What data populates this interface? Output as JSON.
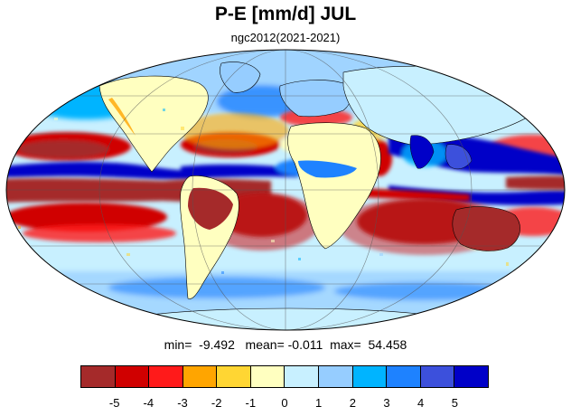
{
  "title": "P-E [mm/d] JUL",
  "subtitle": "ngc2012(2021-2021)",
  "stats": {
    "min_label": "min=",
    "min_value": "-9.492",
    "mean_label": "mean=",
    "mean_value": "-0.011",
    "max_label": "max=",
    "max_value": "54.458"
  },
  "colorbar": {
    "colors": [
      "#a52a2a",
      "#d00000",
      "#ff1a1a",
      "#ffa500",
      "#ffd633",
      "#ffffc0",
      "#c8f0ff",
      "#96cdff",
      "#00b4ff",
      "#1e82ff",
      "#3c50dc",
      "#0000c8"
    ],
    "labels": [
      "-5",
      "-4",
      "-3",
      "-2",
      "-1",
      "0",
      "1",
      "2",
      "3",
      "4",
      "5"
    ]
  }
}
